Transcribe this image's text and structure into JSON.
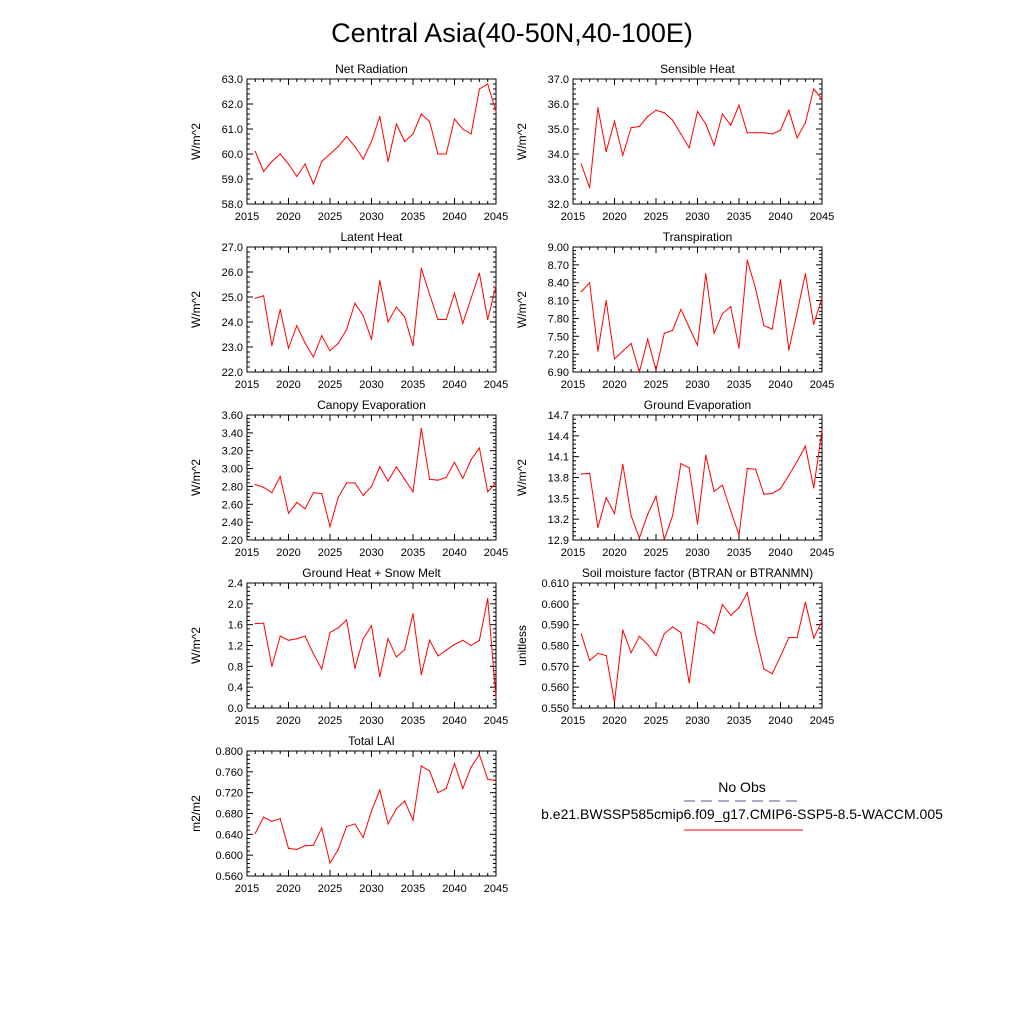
{
  "title": "Central Asia(40-50N,40-100E)",
  "legend": {
    "obs_label": "No Obs",
    "obs_color": "#5a5a9a",
    "model_label": "b.e21.BWSSP585cmip6.f09_g17.CMIP6-SSP5-8.5-WACCM.005",
    "model_color": "#ff0000"
  },
  "chart_data": [
    {
      "type": "line",
      "title": "Net Radiation",
      "ylabel": "W/m^2",
      "xlim": [
        2015,
        2045
      ],
      "ylim": [
        58.0,
        63.0
      ],
      "xticks": [
        2015,
        2020,
        2025,
        2030,
        2035,
        2040,
        2045
      ],
      "yticks": [
        "58.0",
        "59.0",
        "60.0",
        "61.0",
        "62.0",
        "63.0"
      ],
      "x": [
        2016,
        2017,
        2018,
        2019,
        2020,
        2021,
        2022,
        2023,
        2024,
        2025,
        2026,
        2027,
        2028,
        2029,
        2030,
        2031,
        2032,
        2033,
        2034,
        2035,
        2036,
        2037,
        2038,
        2039,
        2040,
        2041,
        2042,
        2043,
        2044,
        2045
      ],
      "series": [
        {
          "name": "model",
          "color": "#ff0000",
          "values": [
            60.1,
            59.3,
            59.7,
            60.0,
            59.6,
            59.1,
            59.6,
            58.8,
            59.7,
            60.0,
            60.3,
            60.7,
            60.3,
            59.8,
            60.5,
            61.5,
            59.7,
            61.2,
            60.5,
            60.8,
            61.6,
            61.3,
            60.0,
            60.0,
            61.4,
            61.0,
            60.8,
            62.6,
            62.8,
            61.7
          ]
        }
      ]
    },
    {
      "type": "line",
      "title": "Sensible Heat",
      "ylabel": "W/m^2",
      "xlim": [
        2015,
        2045
      ],
      "ylim": [
        32.0,
        37.0
      ],
      "xticks": [
        2015,
        2020,
        2025,
        2030,
        2035,
        2040,
        2045
      ],
      "yticks": [
        "32.0",
        "33.0",
        "34.0",
        "35.0",
        "36.0",
        "37.0"
      ],
      "x": [
        2016,
        2017,
        2018,
        2019,
        2020,
        2021,
        2022,
        2023,
        2024,
        2025,
        2026,
        2027,
        2028,
        2029,
        2030,
        2031,
        2032,
        2033,
        2034,
        2035,
        2036,
        2037,
        2038,
        2039,
        2040,
        2041,
        2042,
        2043,
        2044,
        2045
      ],
      "series": [
        {
          "name": "model",
          "color": "#ff0000",
          "values": [
            33.6,
            32.65,
            35.85,
            34.1,
            35.3,
            33.95,
            35.05,
            35.1,
            35.5,
            35.75,
            35.65,
            35.35,
            34.8,
            34.25,
            35.7,
            35.2,
            34.35,
            35.6,
            35.15,
            35.95,
            34.85,
            34.85,
            34.85,
            34.8,
            34.95,
            35.75,
            34.65,
            35.25,
            36.6,
            36.2
          ]
        }
      ]
    },
    {
      "type": "line",
      "title": "Latent Heat",
      "ylabel": "W/m^2",
      "xlim": [
        2015,
        2045
      ],
      "ylim": [
        22.0,
        27.0
      ],
      "xticks": [
        2015,
        2020,
        2025,
        2030,
        2035,
        2040,
        2045
      ],
      "yticks": [
        "22.0",
        "23.0",
        "24.0",
        "25.0",
        "26.0",
        "27.0"
      ],
      "x": [
        2016,
        2017,
        2018,
        2019,
        2020,
        2021,
        2022,
        2023,
        2024,
        2025,
        2026,
        2027,
        2028,
        2029,
        2030,
        2031,
        2032,
        2033,
        2034,
        2035,
        2036,
        2037,
        2038,
        2039,
        2040,
        2041,
        2042,
        2043,
        2044,
        2045
      ],
      "series": [
        {
          "name": "model",
          "color": "#ff0000",
          "values": [
            24.95,
            25.05,
            23.05,
            24.5,
            22.95,
            23.85,
            23.15,
            22.6,
            23.45,
            22.85,
            23.15,
            23.7,
            24.75,
            24.25,
            23.3,
            25.65,
            24.0,
            24.6,
            24.2,
            23.05,
            26.15,
            25.1,
            24.1,
            24.1,
            25.15,
            23.95,
            24.95,
            25.95,
            24.1,
            25.45
          ]
        }
      ]
    },
    {
      "type": "line",
      "title": "Transpiration",
      "ylabel": "W/m^2",
      "xlim": [
        2015,
        2045
      ],
      "ylim": [
        6.9,
        9.0
      ],
      "xticks": [
        2015,
        2020,
        2025,
        2030,
        2035,
        2040,
        2045
      ],
      "yticks": [
        "6.90",
        "7.20",
        "7.50",
        "7.80",
        "8.10",
        "8.40",
        "8.70",
        "9.00"
      ],
      "x": [
        2016,
        2017,
        2018,
        2019,
        2020,
        2021,
        2022,
        2023,
        2024,
        2025,
        2026,
        2027,
        2028,
        2029,
        2030,
        2031,
        2032,
        2033,
        2034,
        2035,
        2036,
        2037,
        2038,
        2039,
        2040,
        2041,
        2042,
        2043,
        2044,
        2045
      ],
      "series": [
        {
          "name": "model",
          "color": "#ff0000",
          "values": [
            8.25,
            8.4,
            7.25,
            8.1,
            7.12,
            7.25,
            7.38,
            6.9,
            7.45,
            6.93,
            7.55,
            7.6,
            7.95,
            7.65,
            7.35,
            8.55,
            7.55,
            7.88,
            8.0,
            7.3,
            8.78,
            8.3,
            7.68,
            7.62,
            8.45,
            7.27,
            7.9,
            8.55,
            7.7,
            8.15
          ]
        }
      ]
    },
    {
      "type": "line",
      "title": "Canopy Evaporation",
      "ylabel": "W/m^2",
      "xlim": [
        2015,
        2045
      ],
      "ylim": [
        2.2,
        3.6
      ],
      "xticks": [
        2015,
        2020,
        2025,
        2030,
        2035,
        2040,
        2045
      ],
      "yticks": [
        "2.20",
        "2.40",
        "2.60",
        "2.80",
        "3.00",
        "3.20",
        "3.40",
        "3.60"
      ],
      "x": [
        2016,
        2017,
        2018,
        2019,
        2020,
        2021,
        2022,
        2023,
        2024,
        2025,
        2026,
        2027,
        2028,
        2029,
        2030,
        2031,
        2032,
        2033,
        2034,
        2035,
        2036,
        2037,
        2038,
        2039,
        2040,
        2041,
        2042,
        2043,
        2044,
        2045
      ],
      "series": [
        {
          "name": "model",
          "color": "#ff0000",
          "values": [
            2.82,
            2.79,
            2.73,
            2.91,
            2.5,
            2.62,
            2.55,
            2.73,
            2.72,
            2.35,
            2.68,
            2.84,
            2.84,
            2.7,
            2.8,
            3.02,
            2.86,
            3.02,
            2.88,
            2.74,
            3.45,
            2.88,
            2.87,
            2.9,
            3.07,
            2.89,
            3.1,
            3.23,
            2.74,
            2.84
          ]
        }
      ]
    },
    {
      "type": "line",
      "title": "Ground Evaporation",
      "ylabel": "W/m^2",
      "xlim": [
        2015,
        2045
      ],
      "ylim": [
        12.9,
        14.7
      ],
      "xticks": [
        2015,
        2020,
        2025,
        2030,
        2035,
        2040,
        2045
      ],
      "yticks": [
        "12.9",
        "13.2",
        "13.5",
        "13.8",
        "14.1",
        "14.4",
        "14.7"
      ],
      "x": [
        2016,
        2017,
        2018,
        2019,
        2020,
        2021,
        2022,
        2023,
        2024,
        2025,
        2026,
        2027,
        2028,
        2029,
        2030,
        2031,
        2032,
        2033,
        2034,
        2035,
        2036,
        2037,
        2038,
        2039,
        2040,
        2041,
        2042,
        2043,
        2044,
        2045
      ],
      "series": [
        {
          "name": "model",
          "color": "#ff0000",
          "values": [
            13.85,
            13.86,
            13.08,
            13.51,
            13.28,
            13.99,
            13.25,
            12.93,
            13.27,
            13.53,
            12.91,
            13.25,
            14.0,
            13.94,
            13.13,
            14.12,
            13.6,
            13.69,
            13.32,
            12.97,
            13.93,
            13.92,
            13.56,
            13.57,
            13.64,
            13.83,
            14.03,
            14.25,
            13.65,
            14.48
          ]
        }
      ]
    },
    {
      "type": "line",
      "title": "Ground Heat + Snow Melt",
      "ylabel": "W/m^2",
      "xlim": [
        2015,
        2045
      ],
      "ylim": [
        0.0,
        2.4
      ],
      "xticks": [
        2015,
        2020,
        2025,
        2030,
        2035,
        2040,
        2045
      ],
      "yticks": [
        "0.0",
        "0.4",
        "0.8",
        "1.2",
        "1.6",
        "2.0",
        "2.4"
      ],
      "x": [
        2016,
        2017,
        2018,
        2019,
        2020,
        2021,
        2022,
        2023,
        2024,
        2025,
        2026,
        2027,
        2028,
        2029,
        2030,
        2031,
        2032,
        2033,
        2034,
        2035,
        2036,
        2037,
        2038,
        2039,
        2040,
        2041,
        2042,
        2043,
        2044,
        2045
      ],
      "series": [
        {
          "name": "model",
          "color": "#ff0000",
          "values": [
            1.62,
            1.63,
            0.8,
            1.38,
            1.3,
            1.33,
            1.38,
            1.04,
            0.75,
            1.45,
            1.54,
            1.69,
            0.76,
            1.33,
            1.58,
            0.6,
            1.33,
            0.98,
            1.12,
            1.81,
            0.64,
            1.3,
            1.0,
            1.11,
            1.22,
            1.3,
            1.2,
            1.3,
            2.1,
            0.2
          ]
        }
      ]
    },
    {
      "type": "line",
      "title": "Soil moisture factor (BTRAN or BTRANMN)",
      "ylabel": "unitless",
      "xlim": [
        2015,
        2045
      ],
      "ylim": [
        0.55,
        0.61
      ],
      "xticks": [
        2015,
        2020,
        2025,
        2030,
        2035,
        2040,
        2045
      ],
      "yticks": [
        "0.550",
        "0.560",
        "0.570",
        "0.580",
        "0.590",
        "0.600",
        "0.610"
      ],
      "x": [
        2016,
        2017,
        2018,
        2019,
        2020,
        2021,
        2022,
        2023,
        2024,
        2025,
        2026,
        2027,
        2028,
        2029,
        2030,
        2031,
        2032,
        2033,
        2034,
        2035,
        2036,
        2037,
        2038,
        2039,
        2040,
        2041,
        2042,
        2043,
        2044,
        2045
      ],
      "series": [
        {
          "name": "model",
          "color": "#ff0000",
          "values": [
            0.5855,
            0.5728,
            0.5762,
            0.5752,
            0.5528,
            0.5874,
            0.5765,
            0.5844,
            0.5805,
            0.5751,
            0.5857,
            0.5889,
            0.5862,
            0.5621,
            0.5913,
            0.5896,
            0.5858,
            0.5997,
            0.5945,
            0.5981,
            0.6053,
            0.5854,
            0.5687,
            0.5665,
            0.5748,
            0.5838,
            0.5838,
            0.6008,
            0.5836,
            0.5916
          ]
        }
      ]
    },
    {
      "type": "line",
      "title": "Total LAI",
      "ylabel": "m2/m2",
      "xlim": [
        2015,
        2045
      ],
      "ylim": [
        0.56,
        0.8
      ],
      "xticks": [
        2015,
        2020,
        2025,
        2030,
        2035,
        2040,
        2045
      ],
      "yticks": [
        "0.560",
        "0.600",
        "0.640",
        "0.680",
        "0.720",
        "0.760",
        "0.800"
      ],
      "x": [
        2016,
        2017,
        2018,
        2019,
        2020,
        2021,
        2022,
        2023,
        2024,
        2025,
        2026,
        2027,
        2028,
        2029,
        2030,
        2031,
        2032,
        2033,
        2034,
        2035,
        2036,
        2037,
        2038,
        2039,
        2040,
        2041,
        2042,
        2043,
        2044,
        2045
      ],
      "series": [
        {
          "name": "model",
          "color": "#ff0000",
          "values": [
            0.642,
            0.673,
            0.665,
            0.67,
            0.613,
            0.611,
            0.618,
            0.619,
            0.652,
            0.585,
            0.611,
            0.655,
            0.66,
            0.634,
            0.685,
            0.725,
            0.66,
            0.689,
            0.704,
            0.667,
            0.771,
            0.762,
            0.72,
            0.728,
            0.776,
            0.728,
            0.769,
            0.793,
            0.746,
            0.743
          ]
        }
      ]
    }
  ]
}
